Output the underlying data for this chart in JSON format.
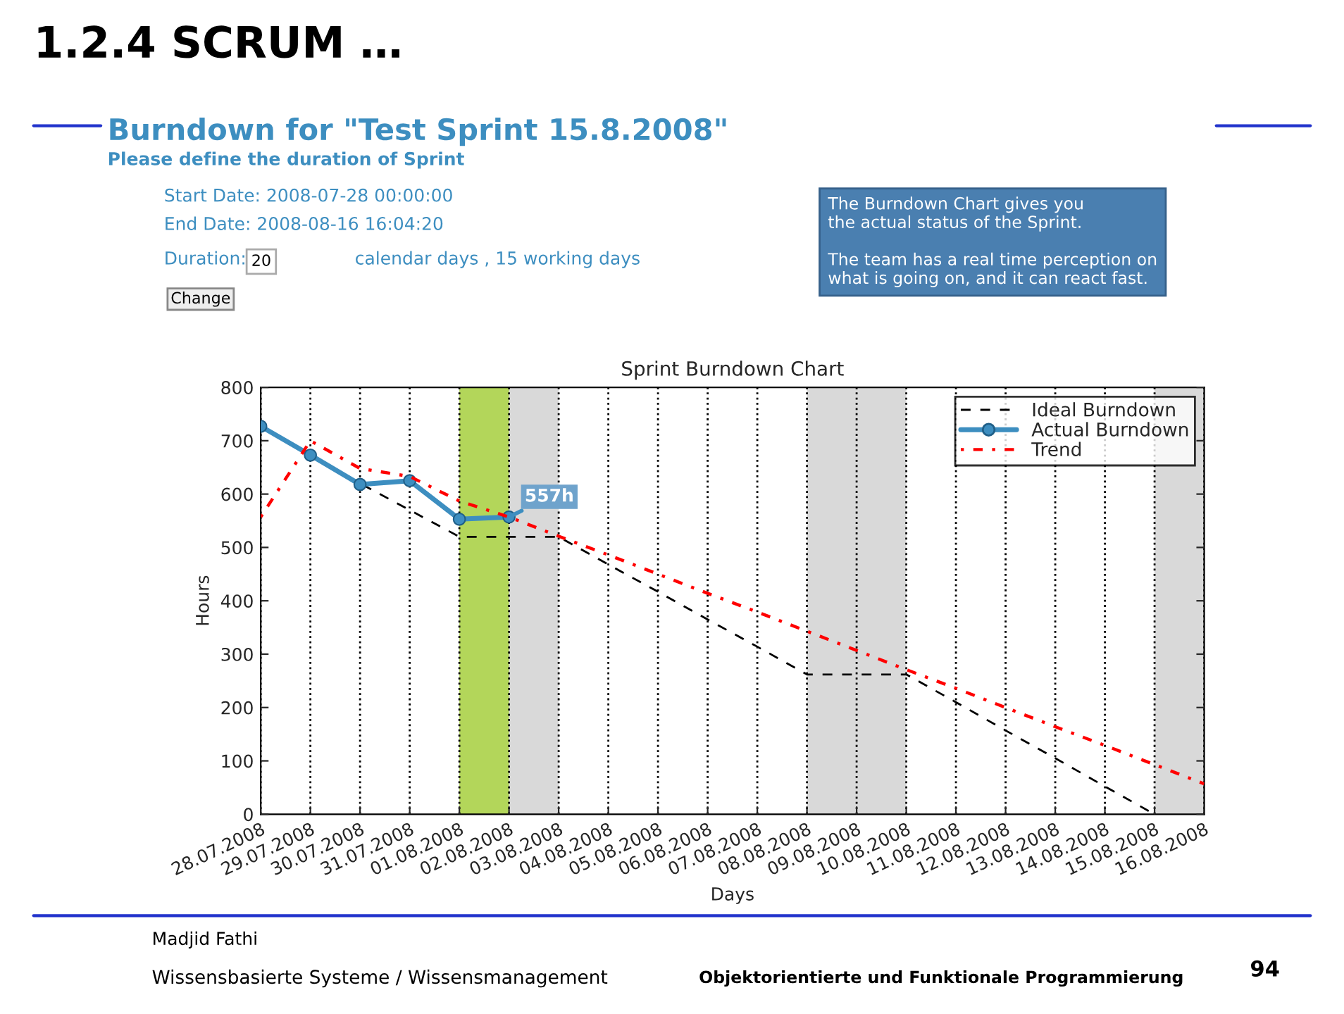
{
  "chart_data": {
    "type": "line",
    "title": "Sprint Burndown Chart",
    "xlabel": "Days",
    "ylabel": "Hours",
    "categories": [
      "28.07.2008",
      "29.07.2008",
      "30.07.2008",
      "31.07.2008",
      "01.08.2008",
      "02.08.2008",
      "03.08.2008",
      "04.08.2008",
      "05.08.2008",
      "06.08.2008",
      "07.08.2008",
      "08.08.2008",
      "09.08.2008",
      "10.08.2008",
      "11.08.2008",
      "12.08.2008",
      "13.08.2008",
      "14.08.2008",
      "15.08.2008",
      "16.08.2008"
    ],
    "series": [
      {
        "name": "Ideal Burndown",
        "color": "#000000",
        "line_style": "dashed",
        "marker": "none",
        "values": [
          727,
          673,
          620,
          570,
          520,
          520,
          520,
          468,
          417,
          365,
          314,
          262,
          262,
          262,
          210,
          157,
          105,
          52,
          0,
          null
        ]
      },
      {
        "name": "Actual Burndown",
        "color": "#3d8ec0",
        "line_style": "solid",
        "marker": "circle",
        "values": [
          727,
          673,
          618,
          625,
          553,
          557,
          null,
          null,
          null,
          null,
          null,
          null,
          null,
          null,
          null,
          null,
          null,
          null,
          null,
          null
        ]
      },
      {
        "name": "Trend",
        "color": "#ff0000",
        "line_style": "dotted",
        "marker": "none",
        "values": [
          557,
          700,
          648,
          633,
          587,
          557,
          521,
          486,
          450,
          414,
          379,
          343,
          307,
          271,
          236,
          200,
          164,
          129,
          93,
          57
        ]
      }
    ],
    "ylim": [
      0,
      800
    ],
    "yticks": [
      0,
      100,
      200,
      300,
      400,
      500,
      600,
      700,
      800
    ],
    "grid": "x",
    "legend": "top right",
    "bands": [
      {
        "axis": "x",
        "from": "01.08.2008",
        "to": "03.08.2008",
        "color": "#d9d9d9"
      },
      {
        "axis": "x",
        "from": "08.08.2008",
        "to": "10.08.2008",
        "color": "#d9d9d9"
      },
      {
        "axis": "x",
        "from": "15.08.2008",
        "to": "16.08.2008",
        "color": "#d9d9d9"
      },
      {
        "axis": "x",
        "from": "01.08.2008",
        "to": "02.08.2008",
        "color": "#b3d65a"
      }
    ],
    "annotations": [
      {
        "text": "557h",
        "x": "02.08.2008",
        "y": 557
      },
      "1.2.4 SCRUM …",
      "Burndown for \"Test Sprint 15.8.2008\"",
      "Please define the duration of Sprint",
      "Start Date: 2008-07-28 00:00:00",
      "End Date: 2008-08-16 16:04:20",
      "Duration:",
      "20",
      "calendar days , 15 working days",
      "Change",
      "The Burndown Chart gives you\nthe actual status of the Sprint.\n\nThe team has a real time perception on\nwhat is going on, and it can react fast.",
      "Madjid Fathi",
      "Wissensbasierte Systeme / Wissensmanagement",
      "Objektorientierte und Funktionale Programmierung",
      "94"
    ]
  }
}
